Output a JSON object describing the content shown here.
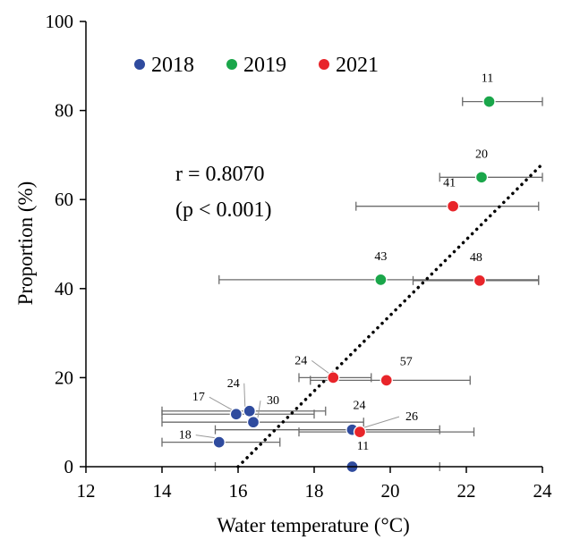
{
  "chart_data": {
    "type": "scatter",
    "xlabel": "Water temperature (°C)",
    "ylabel": "Proportion (%)",
    "xlim": [
      12,
      24
    ],
    "ylim": [
      0,
      100
    ],
    "xticks": [
      "12",
      "14",
      "16",
      "18",
      "20",
      "22",
      "24"
    ],
    "yticks": [
      "0",
      "20",
      "40",
      "60",
      "80",
      "100"
    ],
    "grid": false,
    "legend": "top-left",
    "annotation": {
      "r_text": "r = 0.8070",
      "p_text": "(p < 0.001)"
    },
    "trendline": {
      "style": "dotted",
      "color": "#000000",
      "x": [
        16.0,
        24.0
      ],
      "y": [
        0,
        68
      ]
    },
    "series": [
      {
        "name": "2018",
        "color": "#2f4b9e",
        "points": [
          {
            "x": 15.5,
            "y": 5.5,
            "xmin": 14.0,
            "xmax": 17.1,
            "label": "18"
          },
          {
            "x": 15.95,
            "y": 11.8,
            "xmin": 14.0,
            "xmax": 18.0,
            "label": "17"
          },
          {
            "x": 16.3,
            "y": 12.5,
            "xmin": 14.0,
            "xmax": 18.3,
            "label": "24"
          },
          {
            "x": 16.4,
            "y": 10.0,
            "xmin": 14.0,
            "xmax": 19.3,
            "label": "30"
          },
          {
            "x": 19.0,
            "y": 8.3,
            "xmin": 15.4,
            "xmax": 21.3,
            "label": "24"
          },
          {
            "x": 19.0,
            "y": 0.0,
            "xmin": 15.4,
            "xmax": 21.3,
            "label": "11"
          }
        ]
      },
      {
        "name": "2019",
        "color": "#1aa64a",
        "points": [
          {
            "x": 22.6,
            "y": 82.0,
            "xmin": 21.9,
            "xmax": 24.0,
            "label": "11"
          },
          {
            "x": 22.4,
            "y": 65.0,
            "xmin": 21.3,
            "xmax": 24.0,
            "label": "20"
          },
          {
            "x": 19.75,
            "y": 42.0,
            "xmin": 15.5,
            "xmax": 23.9,
            "label": "43"
          }
        ]
      },
      {
        "name": "2021",
        "color": "#e8252a",
        "points": [
          {
            "x": 21.65,
            "y": 58.5,
            "xmin": 19.1,
            "xmax": 23.9,
            "label": "41"
          },
          {
            "x": 22.35,
            "y": 41.8,
            "xmin": 20.6,
            "xmax": 23.9,
            "label": "48"
          },
          {
            "x": 18.5,
            "y": 20.0,
            "xmin": 17.6,
            "xmax": 19.5,
            "label": "24"
          },
          {
            "x": 19.9,
            "y": 19.4,
            "xmin": 17.9,
            "xmax": 22.1,
            "label": "57"
          },
          {
            "x": 19.2,
            "y": 7.8,
            "xmin": 17.6,
            "xmax": 22.2,
            "label": "26"
          }
        ]
      }
    ]
  }
}
